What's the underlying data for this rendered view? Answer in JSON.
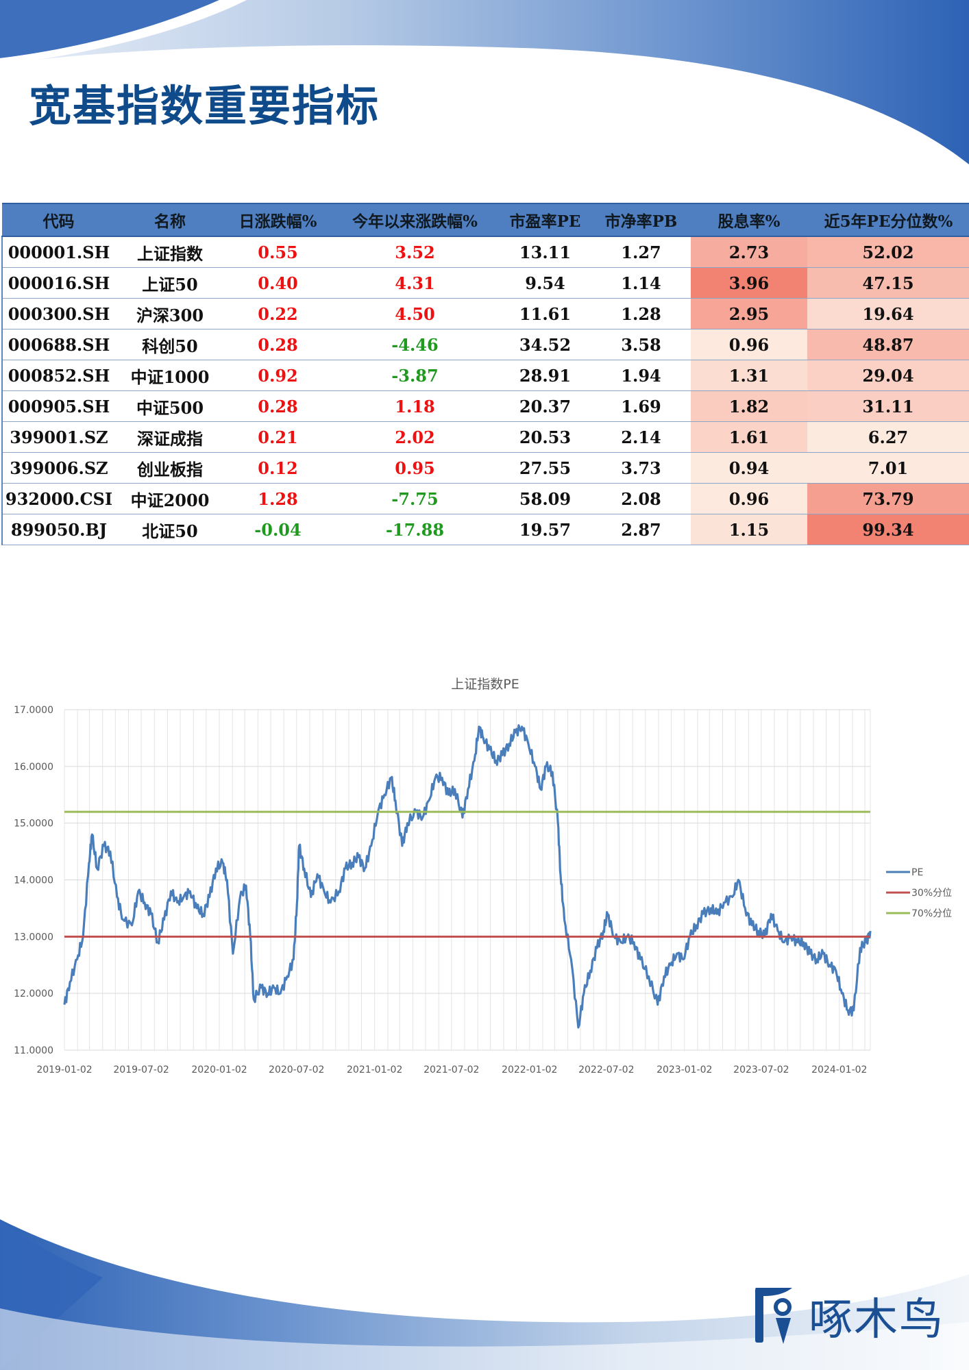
{
  "title": "宽基指数重要指标",
  "table": {
    "headers": [
      "代码",
      "名称",
      "日涨跌幅%",
      "今年以来涨跌幅%",
      "市盈率PE",
      "市净率PB",
      "股息率%",
      "近5年PE分位数%"
    ],
    "rows": [
      {
        "code": "000001.SH",
        "name": "上证指数",
        "daily": "0.55",
        "ytd": "3.52",
        "pe": "13.11",
        "pb": "1.27",
        "div": "2.73",
        "pct": "52.02"
      },
      {
        "code": "000016.SH",
        "name": "上证50",
        "daily": "0.40",
        "ytd": "4.31",
        "pe": "9.54",
        "pb": "1.14",
        "div": "3.96",
        "pct": "47.15"
      },
      {
        "code": "000300.SH",
        "name": "沪深300",
        "daily": "0.22",
        "ytd": "4.50",
        "pe": "11.61",
        "pb": "1.28",
        "div": "2.95",
        "pct": "19.64"
      },
      {
        "code": "000688.SH",
        "name": "科创50",
        "daily": "0.28",
        "ytd": "-4.46",
        "pe": "34.52",
        "pb": "3.58",
        "div": "0.96",
        "pct": "48.87"
      },
      {
        "code": "000852.SH",
        "name": "中证1000",
        "daily": "0.92",
        "ytd": "-3.87",
        "pe": "28.91",
        "pb": "1.94",
        "div": "1.31",
        "pct": "29.04"
      },
      {
        "code": "000905.SH",
        "name": "中证500",
        "daily": "0.28",
        "ytd": "1.18",
        "pe": "20.37",
        "pb": "1.69",
        "div": "1.82",
        "pct": "31.11"
      },
      {
        "code": "399001.SZ",
        "name": "深证成指",
        "daily": "0.21",
        "ytd": "2.02",
        "pe": "20.53",
        "pb": "2.14",
        "div": "1.61",
        "pct": "6.27"
      },
      {
        "code": "399006.SZ",
        "name": "创业板指",
        "daily": "0.12",
        "ytd": "0.95",
        "pe": "27.55",
        "pb": "3.73",
        "div": "0.94",
        "pct": "7.01"
      },
      {
        "code": "932000.CSI",
        "name": "中证2000",
        "daily": "1.28",
        "ytd": "-7.75",
        "pe": "58.09",
        "pb": "2.08",
        "div": "0.96",
        "pct": "73.79"
      },
      {
        "code": "899050.BJ",
        "name": "北证50",
        "daily": "-0.04",
        "ytd": "-17.88",
        "pe": "19.57",
        "pb": "2.87",
        "div": "1.15",
        "pct": "99.34"
      }
    ]
  },
  "colors": {
    "positive": "#ee1111",
    "negative": "#1f9a1f",
    "heat_low": "#fdeadf",
    "heat_high": "#f28272",
    "header_bg": "#4f7fc0",
    "title": "#0f4a8a"
  },
  "chart_data": {
    "type": "line",
    "title": "上证指数PE",
    "xlabel": "",
    "ylabel": "",
    "ylim": [
      11,
      17
    ],
    "y_ticks": [
      "11.0000",
      "12.0000",
      "13.0000",
      "14.0000",
      "15.0000",
      "16.0000",
      "17.0000"
    ],
    "x_ticks": [
      "2019-01-02",
      "2019-07-02",
      "2020-01-02",
      "2020-07-02",
      "2021-01-02",
      "2021-07-02",
      "2022-01-02",
      "2022-07-02",
      "2023-01-02",
      "2023-07-02",
      "2024-01-02"
    ],
    "x_range": [
      "2019-01-02",
      "2024-03-15"
    ],
    "grid": true,
    "legend_position": "right",
    "series": [
      {
        "name": "PE",
        "color": "#4a7ebb",
        "points": [
          [
            "2019-01-02",
            11.8
          ],
          [
            "2019-01-15",
            12.2
          ],
          [
            "2019-02-01",
            12.6
          ],
          [
            "2019-02-15",
            13.0
          ],
          [
            "2019-03-01",
            14.3
          ],
          [
            "2019-03-08",
            14.8
          ],
          [
            "2019-03-20",
            14.2
          ],
          [
            "2019-04-05",
            14.6
          ],
          [
            "2019-04-20",
            14.5
          ],
          [
            "2019-05-06",
            13.7
          ],
          [
            "2019-05-20",
            13.3
          ],
          [
            "2019-06-10",
            13.2
          ],
          [
            "2019-06-25",
            13.8
          ],
          [
            "2019-07-10",
            13.6
          ],
          [
            "2019-07-25",
            13.4
          ],
          [
            "2019-08-10",
            12.9
          ],
          [
            "2019-08-25",
            13.3
          ],
          [
            "2019-09-10",
            13.8
          ],
          [
            "2019-09-25",
            13.6
          ],
          [
            "2019-10-10",
            13.7
          ],
          [
            "2019-10-25",
            13.8
          ],
          [
            "2019-11-10",
            13.5
          ],
          [
            "2019-11-25",
            13.4
          ],
          [
            "2019-12-10",
            13.7
          ],
          [
            "2019-12-25",
            14.2
          ],
          [
            "2020-01-10",
            14.3
          ],
          [
            "2020-01-20",
            14.0
          ],
          [
            "2020-02-03",
            12.7
          ],
          [
            "2020-02-20",
            13.7
          ],
          [
            "2020-03-05",
            13.9
          ],
          [
            "2020-03-15",
            13.0
          ],
          [
            "2020-03-23",
            11.9
          ],
          [
            "2020-04-10",
            12.1
          ],
          [
            "2020-04-25",
            12.0
          ],
          [
            "2020-05-10",
            12.1
          ],
          [
            "2020-05-25",
            12.0
          ],
          [
            "2020-06-10",
            12.3
          ],
          [
            "2020-06-25",
            12.6
          ],
          [
            "2020-07-03",
            13.6
          ],
          [
            "2020-07-08",
            14.6
          ],
          [
            "2020-07-20",
            14.2
          ],
          [
            "2020-08-05",
            13.7
          ],
          [
            "2020-08-20",
            14.1
          ],
          [
            "2020-09-05",
            13.8
          ],
          [
            "2020-09-20",
            13.6
          ],
          [
            "2020-10-10",
            13.8
          ],
          [
            "2020-10-25",
            14.2
          ],
          [
            "2020-11-10",
            14.3
          ],
          [
            "2020-11-25",
            14.4
          ],
          [
            "2020-12-10",
            14.2
          ],
          [
            "2020-12-25",
            14.6
          ],
          [
            "2021-01-10",
            15.2
          ],
          [
            "2021-01-25",
            15.5
          ],
          [
            "2021-02-10",
            15.8
          ],
          [
            "2021-02-20",
            15.4
          ],
          [
            "2021-03-08",
            14.6
          ],
          [
            "2021-03-20",
            15.0
          ],
          [
            "2021-04-10",
            15.2
          ],
          [
            "2021-04-25",
            15.1
          ],
          [
            "2021-05-10",
            15.4
          ],
          [
            "2021-05-25",
            15.8
          ],
          [
            "2021-06-10",
            15.8
          ],
          [
            "2021-06-25",
            15.5
          ],
          [
            "2021-07-10",
            15.6
          ],
          [
            "2021-07-28",
            15.1
          ],
          [
            "2021-08-10",
            15.6
          ],
          [
            "2021-08-25",
            16.1
          ],
          [
            "2021-09-05",
            16.7
          ],
          [
            "2021-09-15",
            16.5
          ],
          [
            "2021-09-30",
            16.3
          ],
          [
            "2021-10-15",
            16.1
          ],
          [
            "2021-10-30",
            16.2
          ],
          [
            "2021-11-15",
            16.4
          ],
          [
            "2021-11-30",
            16.6
          ],
          [
            "2021-12-15",
            16.7
          ],
          [
            "2021-12-30",
            16.4
          ],
          [
            "2022-01-15",
            16.0
          ],
          [
            "2022-01-28",
            15.6
          ],
          [
            "2022-02-10",
            16.0
          ],
          [
            "2022-02-25",
            15.9
          ],
          [
            "2022-03-10",
            15.0
          ],
          [
            "2022-03-16",
            14.1
          ],
          [
            "2022-03-25",
            13.3
          ],
          [
            "2022-04-10",
            12.6
          ],
          [
            "2022-04-27",
            11.4
          ],
          [
            "2022-05-10",
            12.0
          ],
          [
            "2022-05-25",
            12.4
          ],
          [
            "2022-06-10",
            12.8
          ],
          [
            "2022-06-25",
            13.1
          ],
          [
            "2022-07-05",
            13.4
          ],
          [
            "2022-07-20",
            13.0
          ],
          [
            "2022-08-05",
            12.9
          ],
          [
            "2022-08-20",
            13.0
          ],
          [
            "2022-09-05",
            12.9
          ],
          [
            "2022-09-20",
            12.6
          ],
          [
            "2022-10-10",
            12.3
          ],
          [
            "2022-10-31",
            11.8
          ],
          [
            "2022-11-15",
            12.3
          ],
          [
            "2022-11-30",
            12.5
          ],
          [
            "2022-12-15",
            12.7
          ],
          [
            "2022-12-30",
            12.6
          ],
          [
            "2023-01-15",
            13.0
          ],
          [
            "2023-01-30",
            13.2
          ],
          [
            "2023-02-15",
            13.4
          ],
          [
            "2023-03-05",
            13.5
          ],
          [
            "2023-03-20",
            13.4
          ],
          [
            "2023-04-05",
            13.6
          ],
          [
            "2023-04-25",
            13.7
          ],
          [
            "2023-05-09",
            14.0
          ],
          [
            "2023-05-25",
            13.5
          ],
          [
            "2023-06-10",
            13.2
          ],
          [
            "2023-06-25",
            13.1
          ],
          [
            "2023-07-10",
            13.0
          ],
          [
            "2023-07-25",
            13.4
          ],
          [
            "2023-08-10",
            13.1
          ],
          [
            "2023-08-25",
            12.9
          ],
          [
            "2023-09-10",
            13.0
          ],
          [
            "2023-09-25",
            12.9
          ],
          [
            "2023-10-10",
            12.9
          ],
          [
            "2023-10-25",
            12.7
          ],
          [
            "2023-11-10",
            12.6
          ],
          [
            "2023-11-25",
            12.7
          ],
          [
            "2023-12-10",
            12.5
          ],
          [
            "2023-12-25",
            12.4
          ],
          [
            "2024-01-08",
            12.0
          ],
          [
            "2024-01-22",
            11.7
          ],
          [
            "2024-02-05",
            11.7
          ],
          [
            "2024-02-20",
            12.8
          ],
          [
            "2024-03-05",
            12.9
          ],
          [
            "2024-03-15",
            13.1
          ]
        ]
      },
      {
        "name": "30%分位",
        "color": "#c0504d",
        "constant": 13.0
      },
      {
        "name": "70%分位",
        "color": "#9bbb59",
        "constant": 15.2
      }
    ]
  }
}
